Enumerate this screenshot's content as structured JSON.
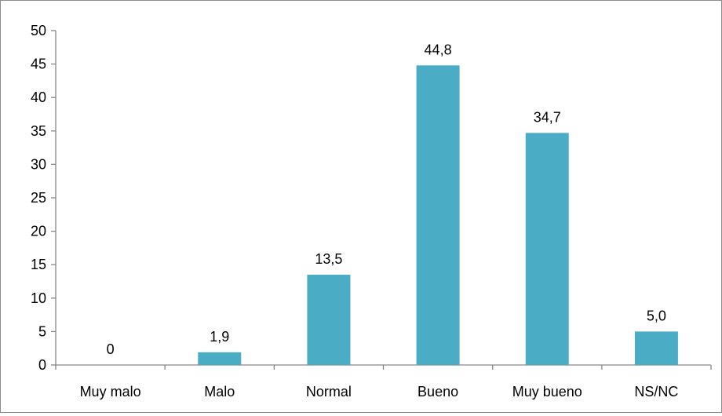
{
  "chart_data": {
    "type": "bar",
    "title": "",
    "xlabel": "",
    "ylabel": "",
    "categories": [
      "Muy malo",
      "Malo",
      "Normal",
      "Bueno",
      "Muy bueno",
      "NS/NC"
    ],
    "values": [
      0,
      1.9,
      13.5,
      44.8,
      34.7,
      5.0
    ],
    "data_labels": [
      "0",
      "1,9",
      "13,5",
      "44,8",
      "34,7",
      "5,0"
    ],
    "ylim": [
      0,
      50
    ],
    "yticks": [
      0,
      5,
      10,
      15,
      20,
      25,
      30,
      35,
      40,
      45,
      50
    ],
    "ytick_labels": [
      "0",
      "5",
      "10",
      "15",
      "20",
      "25",
      "30",
      "35",
      "40",
      "45",
      "50"
    ],
    "grid": false,
    "legend": "none",
    "bar_color": "#4BACC6",
    "axis_color": "#868686"
  }
}
